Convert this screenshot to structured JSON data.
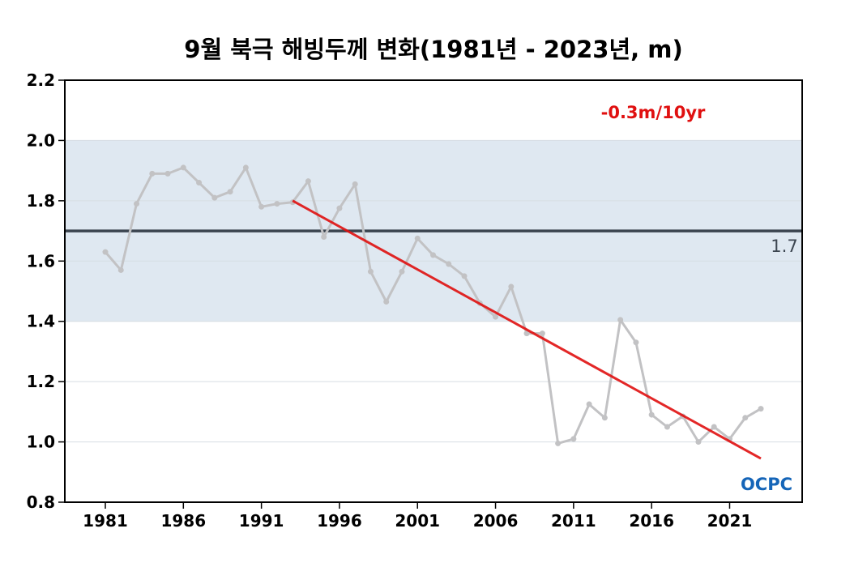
{
  "title": "9월 북극 해빙두께 변화(1981년 - 2023년, m)",
  "logo": "OCPC",
  "colors": {
    "band": "#dfe8f1",
    "series": "#c2c2c4",
    "reference": "#3c4550",
    "trend": "#e01010",
    "axis": "#000000",
    "grid": "#d6dde3",
    "logo": "#1565b8"
  },
  "chart_data": {
    "type": "line",
    "ylim": [
      0.8,
      2.2
    ],
    "yticks": [
      "0.8",
      "1.0",
      "1.2",
      "1.4",
      "1.6",
      "1.8",
      "2.0",
      "2.2"
    ],
    "xlim": [
      1981,
      2023
    ],
    "xticks": [
      "1981",
      "1986",
      "1991",
      "1996",
      "2001",
      "2006",
      "2011",
      "2016",
      "2021"
    ],
    "grid": true,
    "band": [
      1.4,
      2.0
    ],
    "reference_line": {
      "value": 1.7,
      "label": "1.7"
    },
    "trend": {
      "label": "-0.3m/10yr",
      "x": [
        1993,
        2023
      ],
      "y": [
        1.8,
        0.945
      ]
    },
    "series": [
      {
        "x": [
          1981,
          1982,
          1983,
          1984,
          1985,
          1986,
          1987,
          1988,
          1989,
          1990,
          1991,
          1992,
          1993,
          1994,
          1995,
          1996,
          1997,
          1998,
          1999,
          2000,
          2001,
          2002,
          2003,
          2004,
          2005,
          2006,
          2007,
          2008,
          2009,
          2010,
          2011,
          2012,
          2013,
          2014,
          2015,
          2016,
          2017,
          2018,
          2019,
          2020,
          2021,
          2022,
          2023
        ],
        "values": [
          1.63,
          1.57,
          1.79,
          1.89,
          1.89,
          1.91,
          1.86,
          1.81,
          1.83,
          1.91,
          1.78,
          1.79,
          1.795,
          1.865,
          1.68,
          1.775,
          1.855,
          1.565,
          1.465,
          1.565,
          1.675,
          1.62,
          1.59,
          1.55,
          1.46,
          1.415,
          1.515,
          1.36,
          1.36,
          0.995,
          1.01,
          1.125,
          1.08,
          1.405,
          1.33,
          1.09,
          1.05,
          1.085,
          1.0,
          1.05,
          1.01,
          1.08,
          1.11
        ]
      }
    ]
  }
}
